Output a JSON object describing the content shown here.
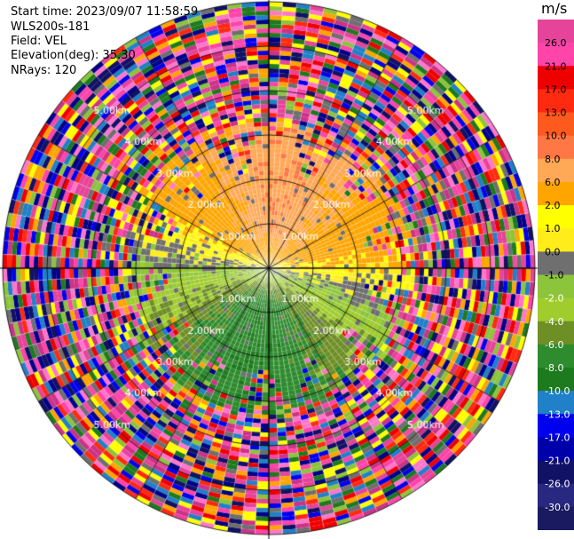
{
  "header": {
    "start_time": "Start time: 2023/09/07 11:58:59",
    "instrument": "WLS200s-181",
    "field": "Field: VEL",
    "elevation": "Elevation(deg): 35.30",
    "nrays": "NRays: 120"
  },
  "chart_data": {
    "type": "heatmap",
    "projection": "polar-ppi",
    "field": "VEL",
    "units": "m/s",
    "nrays": 120,
    "elevation_deg": 35.3,
    "range_max_km": 6.0,
    "range_rings_km": [
      1,
      2,
      3,
      4,
      5
    ],
    "ring_labels": [
      "1.00km",
      "2.00km",
      "3.00km",
      "4.00km",
      "5.00km"
    ],
    "clean_data_radius_km": 3.0,
    "colorbar": {
      "unit_label": "m/s",
      "tick_labels": [
        "26.0",
        "21.0",
        "17.0",
        "13.0",
        "10.0",
        "8.0",
        "6.0",
        "2.0",
        "1.0",
        "0.0",
        "-1.0",
        "-2.0",
        "-4.0",
        "-6.0",
        "-8.0",
        "-10.0",
        "-13.0",
        "-17.0",
        "-21.0",
        "-26.0",
        "-30.0"
      ],
      "colors": [
        "#e6449a",
        "#ff44aa",
        "#ee0000",
        "#ff2a10",
        "#ff5a1e",
        "#ff7744",
        "#ffa855",
        "#ffa500",
        "#ffff00",
        "#ffec1a",
        "#6f6f6f",
        "#8cc43c",
        "#a0cc2e",
        "#6e8e26",
        "#2e8b2e",
        "#1e7a1e",
        "#2080c8",
        "#0000ee",
        "#0000aa",
        "#111166",
        "#282880",
        "#1a1a60"
      ]
    }
  }
}
